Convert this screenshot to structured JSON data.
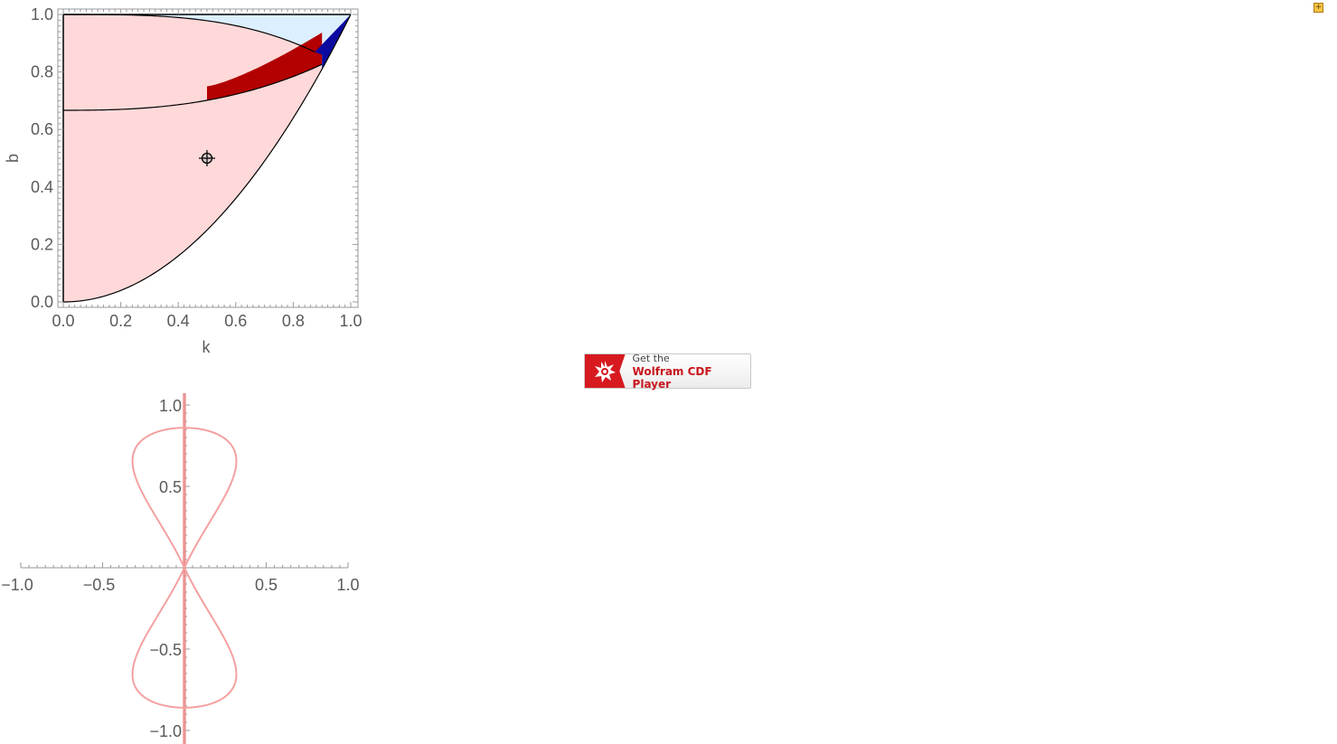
{
  "region_plot": {
    "xlabel": "k",
    "ylabel": "b",
    "x_ticks": [
      "0.0",
      "0.2",
      "0.4",
      "0.6",
      "0.8",
      "1.0"
    ],
    "y_ticks": [
      "0.0",
      "0.2",
      "0.4",
      "0.6",
      "0.8",
      "1.0"
    ],
    "locator": {
      "k": 0.5,
      "b": 0.5
    },
    "colors": {
      "light_red": "#ffd9d9",
      "light_blue": "#dcefff",
      "dark_red": "#b30000",
      "dark_blue": "#0a0aa0"
    }
  },
  "curve_plot": {
    "x_ticks": [
      "−1.0",
      "−0.5",
      "0.5",
      "1.0"
    ],
    "y_ticks": [
      "1.0",
      "0.5",
      "−0.5",
      "−1.0"
    ],
    "curve_color": "#f4a0a0",
    "axis_line_color": "#f08a8a"
  },
  "chart_data": [
    {
      "type": "area",
      "xlabel": "k",
      "ylabel": "b",
      "xlim": [
        0,
        1
      ],
      "ylim": [
        0,
        1
      ],
      "regions": [
        {
          "color": "light_red",
          "bounds": "between b = k^2 and b = 1, under upper-left curve"
        },
        {
          "color": "light_blue",
          "bounds": "upper-right wedge near (1, 1)"
        },
        {
          "color": "dark_red",
          "bounds": "thin wedge from k ≈ 0.5 to k ≈ 0.9, b ≈ 0.7 to 0.86"
        },
        {
          "color": "dark_blue",
          "bounds": "thin wedge from k ≈ 0.88 to k = 1, b ≈ 0.8 to 1.0"
        }
      ],
      "boundary_curves": [
        {
          "x": [
            0,
            0.2,
            0.4,
            0.6,
            0.8,
            0.9,
            1.0
          ],
          "y": [
            0.0,
            0.04,
            0.16,
            0.36,
            0.64,
            0.81,
            1.0
          ]
        },
        {
          "x": [
            0,
            0.2,
            0.4,
            0.6,
            0.8,
            0.9
          ],
          "y": [
            0.667,
            0.675,
            0.697,
            0.74,
            0.81,
            0.86
          ]
        },
        {
          "x": [
            0,
            0.3,
            0.5,
            0.7,
            0.8,
            0.87
          ],
          "y": [
            1.0,
            0.99,
            0.97,
            0.93,
            0.9,
            0.86
          ]
        }
      ],
      "locator_point": {
        "x": 0.5,
        "y": 0.5
      }
    },
    {
      "type": "line",
      "xlim": [
        -1,
        1
      ],
      "ylim": [
        -1,
        1
      ],
      "series": [
        {
          "values_desc": "figure-eight curve through origin, lobes reaching y = ±0.85, x = ±0.35"
        },
        {
          "values_desc": "vertical line at x = 0"
        }
      ]
    }
  ],
  "cdf_button": {
    "line1": "Get the",
    "line2": "Wolfram CDF Player"
  },
  "corner_toggle": {
    "label": "+"
  }
}
